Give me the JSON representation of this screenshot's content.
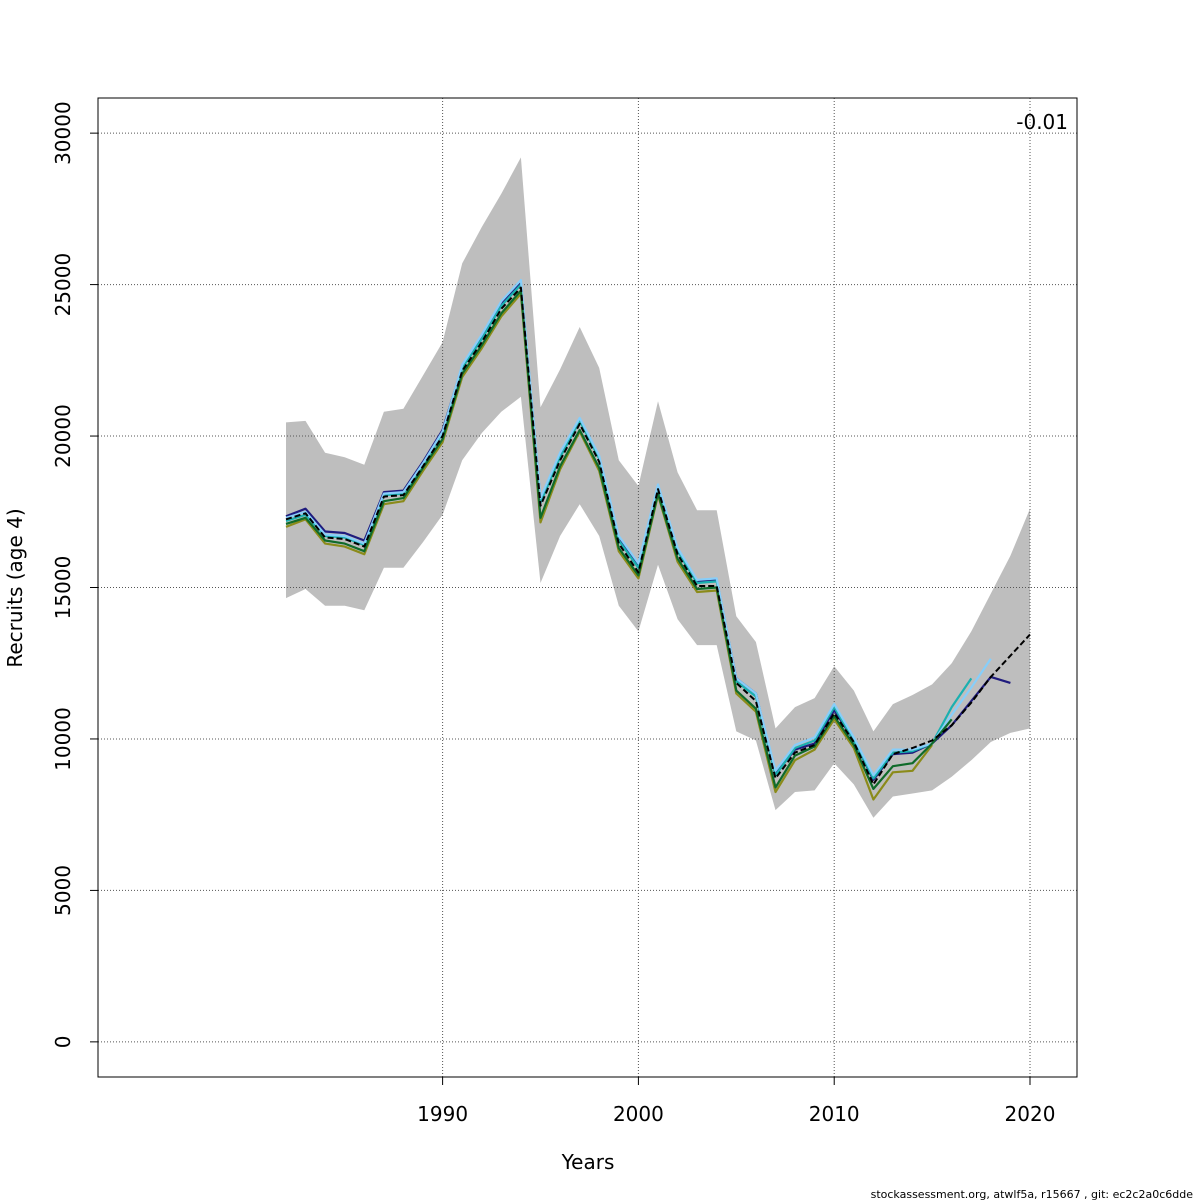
{
  "chart_data": {
    "type": "line",
    "xlabel": "Years",
    "ylabel": "Recruits (age 4)",
    "xlim": [
      1972.4,
      2022.4
    ],
    "ylim": [
      -1160,
      31160
    ],
    "x_ticks": [
      1990,
      2000,
      2010,
      2020
    ],
    "y_ticks": [
      0,
      5000,
      10000,
      15000,
      20000,
      25000,
      30000
    ],
    "grid": true,
    "annotation": "-0.01",
    "confidence_band": {
      "color": "#bebebe",
      "x": [
        1982,
        1983,
        1984,
        1985,
        1986,
        1987,
        1988,
        1989,
        1990,
        1991,
        1992,
        1993,
        1994,
        1995,
        1996,
        1997,
        1998,
        1999,
        2000,
        2001,
        2002,
        2003,
        2004,
        2005,
        2006,
        2007,
        2008,
        2009,
        2010,
        2011,
        2012,
        2013,
        2014,
        2015,
        2016,
        2017,
        2018,
        2019,
        2020
      ],
      "upper": [
        20450,
        20500,
        19450,
        19300,
        19050,
        20800,
        20900,
        22000,
        23100,
        25700,
        26900,
        28000,
        29200,
        20950,
        22200,
        23600,
        22250,
        19200,
        18350,
        21150,
        18800,
        17550,
        17550,
        14050,
        13200,
        10350,
        11050,
        11350,
        12400,
        11600,
        10250,
        11150,
        11450,
        11800,
        12500,
        13550,
        14800,
        16050,
        17600
      ],
      "lower": [
        14650,
        14950,
        14400,
        14400,
        14250,
        15650,
        15650,
        16500,
        17400,
        19200,
        20100,
        20800,
        21300,
        15150,
        16700,
        17750,
        16700,
        14400,
        13550,
        15750,
        13950,
        13100,
        13100,
        10250,
        9950,
        7650,
        8250,
        8300,
        9200,
        8500,
        7400,
        8100,
        8200,
        8300,
        8750,
        9300,
        9900,
        10200,
        10350
      ]
    },
    "series": [
      {
        "color": "#000000",
        "dashed": true,
        "x": [
          1982,
          1983,
          1984,
          1985,
          1986,
          1987,
          1988,
          1989,
          1990,
          1991,
          1992,
          1993,
          1994,
          1995,
          1996,
          1997,
          1998,
          1999,
          2000,
          2001,
          2002,
          2003,
          2004,
          2005,
          2006,
          2007,
          2008,
          2009,
          2010,
          2011,
          2012,
          2013,
          2014,
          2015,
          2016,
          2017,
          2018,
          2019,
          2020
        ],
        "values": [
          17250,
          17450,
          16650,
          16600,
          16350,
          18000,
          18050,
          19000,
          20000,
          22150,
          23100,
          24200,
          24900,
          17700,
          19200,
          20400,
          19150,
          16450,
          15500,
          18250,
          16100,
          15050,
          15050,
          11850,
          11250,
          8700,
          9550,
          9800,
          10850,
          9900,
          8500,
          9500,
          9700,
          9950,
          10450,
          11200,
          12050,
          12750,
          13450
        ]
      },
      {
        "color": "#1f1b7d",
        "dashed": false,
        "x": [
          1982,
          1983,
          1984,
          1985,
          1986,
          1987,
          1988,
          1989,
          1990,
          1991,
          1992,
          1993,
          1994,
          1995,
          1996,
          1997,
          1998,
          1999,
          2000,
          2001,
          2002,
          2003,
          2004,
          2005,
          2006,
          2007,
          2008,
          2009,
          2010,
          2011,
          2012,
          2013,
          2014,
          2015,
          2016,
          2017,
          2018,
          2019
        ],
        "values": [
          17350,
          17600,
          16850,
          16800,
          16550,
          18150,
          18200,
          19150,
          20200,
          22300,
          23300,
          24400,
          25050,
          17900,
          19400,
          20550,
          19300,
          16650,
          15750,
          18300,
          16250,
          15200,
          15250,
          12000,
          11500,
          8850,
          9650,
          9850,
          10950,
          9950,
          8650,
          9500,
          9550,
          9850,
          10450,
          11250,
          12050,
          11850
        ]
      },
      {
        "color": "#1ab0b0",
        "dashed": false,
        "x": [
          1982,
          1983,
          1984,
          1985,
          1986,
          1987,
          1988,
          1989,
          1990,
          1991,
          1992,
          1993,
          1994,
          1995,
          1996,
          1997,
          1998,
          1999,
          2000,
          2001,
          2002,
          2003,
          2004,
          2005,
          2006,
          2007,
          2008,
          2009,
          2010,
          2011,
          2012,
          2013,
          2014,
          2015,
          2016,
          2017
        ],
        "values": [
          17200,
          17400,
          16700,
          16650,
          16400,
          18050,
          18100,
          19050,
          20100,
          22250,
          23200,
          24300,
          25000,
          17800,
          19300,
          20500,
          19250,
          16550,
          15650,
          18300,
          16200,
          15150,
          15200,
          11900,
          11400,
          8800,
          9700,
          9950,
          11050,
          9950,
          8700,
          9550,
          9600,
          9850,
          11050,
          12000
        ]
      },
      {
        "color": "#87cefa",
        "dashed": false,
        "x": [
          1982,
          1983,
          1984,
          1985,
          1986,
          1987,
          1988,
          1989,
          1990,
          1991,
          1992,
          1993,
          1994,
          1995,
          1996,
          1997,
          1998,
          1999,
          2000,
          2001,
          2002,
          2003,
          2004,
          2005,
          2006,
          2007,
          2008,
          2009,
          2010,
          2011,
          2012,
          2013,
          2014,
          2015,
          2016,
          2017,
          2018
        ],
        "values": [
          17300,
          17500,
          16750,
          16700,
          16450,
          18100,
          18150,
          19100,
          20150,
          22350,
          23350,
          24450,
          25150,
          17950,
          19450,
          20600,
          19350,
          16700,
          15800,
          18400,
          16300,
          15250,
          15300,
          12000,
          11500,
          8950,
          9800,
          10050,
          11150,
          10050,
          8800,
          9650,
          9650,
          9850,
          10800,
          11700,
          12650
        ]
      },
      {
        "color": "#8b8b1a",
        "dashed": false,
        "x": [
          1982,
          1983,
          1984,
          1985,
          1986,
          1987,
          1988,
          1989,
          1990,
          1991,
          1992,
          1993,
          1994,
          1995,
          1996,
          1997,
          1998,
          1999,
          2000,
          2001,
          2002,
          2003,
          2004,
          2005,
          2006,
          2007,
          2008,
          2009,
          2010,
          2011,
          2012,
          2013,
          2014,
          2015
        ],
        "values": [
          17000,
          17250,
          16450,
          16350,
          16100,
          17750,
          17850,
          18850,
          19800,
          21950,
          22900,
          23950,
          24700,
          17150,
          18900,
          20150,
          18850,
          16200,
          15300,
          18050,
          15850,
          14850,
          14900,
          11500,
          10900,
          8250,
          9300,
          9650,
          10650,
          9700,
          8000,
          8900,
          8950,
          9800
        ]
      },
      {
        "color": "#0f6b2a",
        "dashed": false,
        "x": [
          1982,
          1983,
          1984,
          1985,
          1986,
          1987,
          1988,
          1989,
          1990,
          1991,
          1992,
          1993,
          1994,
          1995,
          1996,
          1997,
          1998,
          1999,
          2000,
          2001,
          2002,
          2003,
          2004,
          2005,
          2006,
          2007,
          2008,
          2009,
          2010,
          2011,
          2012,
          2013,
          2014,
          2015,
          2016
        ],
        "values": [
          17100,
          17300,
          16550,
          16450,
          16200,
          17850,
          17950,
          18950,
          19900,
          22050,
          23000,
          24050,
          24800,
          17300,
          19000,
          20200,
          18950,
          16300,
          15400,
          18100,
          15950,
          14950,
          15000,
          11600,
          11000,
          8400,
          9450,
          9750,
          10750,
          9800,
          8350,
          9100,
          9200,
          9850,
          10650
        ]
      }
    ]
  },
  "footer": "stockassessment.org, atwlf5a, r15667 , git: ec2c2a0c6dde"
}
